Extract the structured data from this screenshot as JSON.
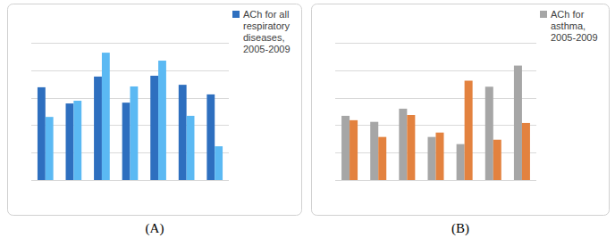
{
  "chart_data": [
    {
      "type": "bar",
      "title": "(A)",
      "categories": [
        null,
        null,
        null,
        null,
        null,
        null,
        null
      ],
      "series": [
        {
          "name": "ACh for all respiratory diseases, 2005-2009",
          "color": "#2e6fbf",
          "values": [
            3.38,
            2.79,
            3.77,
            2.82,
            3.8,
            3.47,
            3.12
          ]
        },
        {
          "color": "#5bb9f3",
          "values": [
            2.3,
            2.89,
            4.64,
            3.41,
            4.35,
            2.34,
            1.23
          ]
        }
      ],
      "ylim": [
        0,
        5
      ],
      "yticks": [
        0,
        1,
        2,
        3,
        4,
        5
      ],
      "grid": true,
      "legend": "right",
      "tick_labels": false
    },
    {
      "type": "bar",
      "title": "(B)",
      "categories": [
        null,
        null,
        null,
        null,
        null,
        null,
        null
      ],
      "series": [
        {
          "name": "ACh for asthma, 2005-2009",
          "color": "#a6a6a6",
          "values": [
            2.34,
            2.12,
            2.6,
            1.57,
            1.31,
            3.4,
            4.17
          ]
        },
        {
          "color": "#e3823f",
          "values": [
            2.18,
            1.57,
            2.37,
            1.73,
            3.62,
            1.47,
            2.08
          ]
        }
      ],
      "ylim": [
        0,
        5
      ],
      "yticks": [
        0,
        1,
        2,
        3,
        4,
        5
      ],
      "grid": true,
      "legend": "right",
      "tick_labels": false
    }
  ]
}
